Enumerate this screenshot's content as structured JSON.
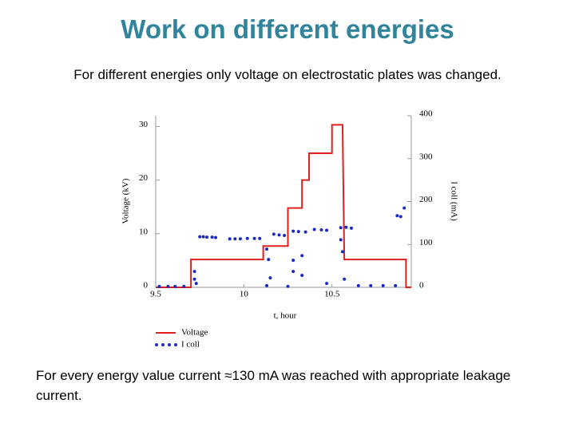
{
  "title": "Work on different energies",
  "subtitle": "For different energies only voltage on electrostatic plates was changed.",
  "footnote": "For every energy value current ≈130 mA was reached with appropriate leakage current.",
  "chart_data": {
    "type": "line",
    "x_label": "t, hour",
    "y_label": "Voltage (kV)",
    "y2_label": "I coll (mA)",
    "xlim": [
      9.5,
      10.95
    ],
    "xticks": [
      9.5,
      10,
      10.5
    ],
    "ylim": [
      0,
      32
    ],
    "yticks": [
      0,
      10,
      20,
      30
    ],
    "y2lim": [
      0,
      400
    ],
    "y2ticks": [
      0,
      100,
      200,
      300,
      400
    ],
    "legend": "bottom-left",
    "series": [
      {
        "name": "Voltage",
        "color": "#e0201c",
        "type": "line",
        "x": [
          9.5,
          9.7,
          9.7,
          10.11,
          10.11,
          10.25,
          10.25,
          10.33,
          10.33,
          10.37,
          10.37,
          10.5,
          10.5,
          10.56,
          10.57,
          10.92,
          10.92,
          10.95
        ],
        "values": [
          0,
          0,
          5.2,
          5.2,
          7.7,
          7.7,
          14.8,
          14.8,
          20,
          20,
          25,
          25,
          30.3,
          30.3,
          5.2,
          5.2,
          0,
          0
        ]
      },
      {
        "name": "I coll",
        "color": "#1a2bc4",
        "type": "scatter",
        "axis": "y2",
        "x": [
          9.52,
          9.57,
          9.61,
          9.66,
          9.72,
          9.72,
          9.73,
          9.75,
          9.77,
          9.79,
          9.82,
          9.84,
          9.92,
          9.95,
          9.98,
          10.02,
          10.06,
          10.09,
          10.13,
          10.13,
          10.14,
          10.15,
          10.17,
          10.2,
          10.23,
          10.25,
          10.28,
          10.28,
          10.28,
          10.31,
          10.33,
          10.33,
          10.35,
          10.4,
          10.44,
          10.47,
          10.47,
          10.55,
          10.55,
          10.56,
          10.57,
          10.58,
          10.61,
          10.65,
          10.72,
          10.79,
          10.86,
          10.87,
          10.89,
          10.91
        ],
        "values": [
          2,
          2,
          2,
          2,
          37,
          19,
          9,
          118,
          118,
          117,
          117,
          116,
          113,
          113,
          113,
          114,
          114,
          114,
          4,
          89,
          65,
          22,
          124,
          122,
          121,
          2,
          131,
          63,
          37,
          130,
          74,
          28,
          129,
          135,
          134,
          133,
          9,
          139,
          111,
          83,
          19,
          140,
          138,
          4,
          4,
          4,
          4,
          167,
          165,
          185
        ]
      }
    ]
  }
}
